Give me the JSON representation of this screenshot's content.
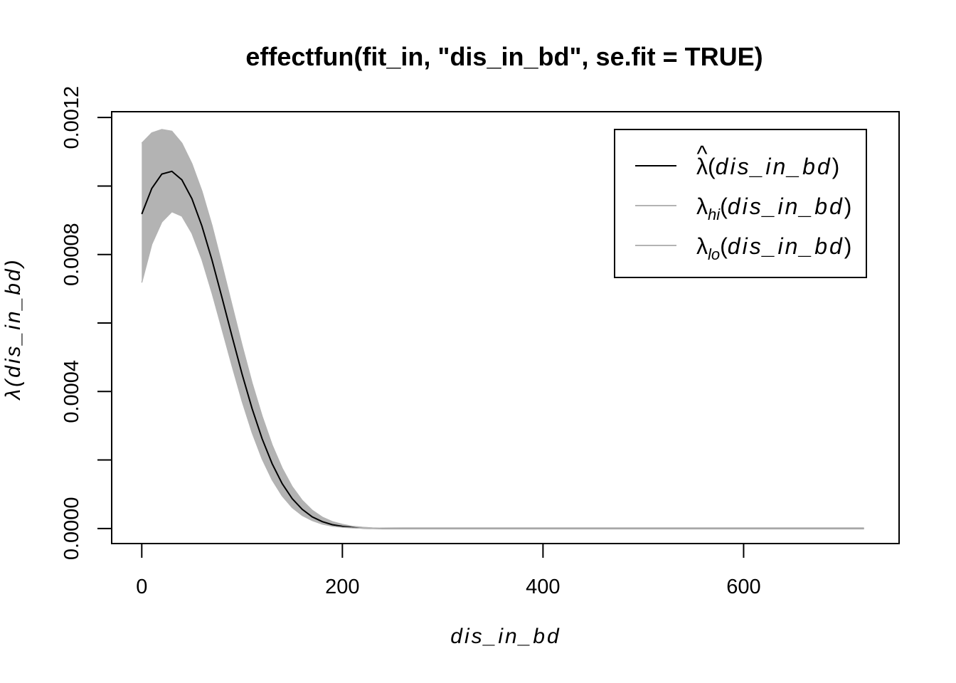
{
  "chart_data": {
    "type": "line",
    "title": "effectfun(fit_in, \"dis_in_bd\", se.fit = TRUE)",
    "xlabel": "dis_in_bd",
    "ylabel": "λ(dis_in_bd)",
    "xlim": [
      -30,
      755
    ],
    "ylim": [
      -4.4e-05,
      0.001217
    ],
    "x_ticks": [
      0,
      200,
      400,
      600
    ],
    "x_tick_labels": [
      "0",
      "200",
      "400",
      "600"
    ],
    "y_ticks": [
      0,
      0.0002,
      0.0004,
      0.0006,
      0.0008,
      0.001,
      0.0012
    ],
    "y_tick_labels": [
      "0.0000",
      "",
      "0.0004",
      "",
      "0.0008",
      "",
      "0.0012"
    ],
    "legend_position": "top-right",
    "legend": [
      {
        "symbol": "λ",
        "hat": "^",
        "subscript": "",
        "variable": "dis_in_bd",
        "color": "#000000"
      },
      {
        "symbol": "λ",
        "hat": "",
        "subscript": "hi",
        "variable": "dis_in_bd",
        "color": "#b3b3b3"
      },
      {
        "symbol": "λ",
        "hat": "",
        "subscript": "lo",
        "variable": "dis_in_bd",
        "color": "#b3b3b3"
      }
    ],
    "x": [
      0,
      10,
      20,
      30,
      40,
      50,
      60,
      70,
      80,
      90,
      100,
      110,
      120,
      130,
      140,
      150,
      160,
      170,
      180,
      190,
      200,
      210,
      220,
      230,
      240,
      250,
      260,
      280,
      300,
      400,
      500,
      600,
      720
    ],
    "series": [
      {
        "name": "λ̂(dis_in_bd)",
        "color": "#000000",
        "values": [
          0.000918,
          0.000993,
          0.001035,
          0.001043,
          0.001018,
          0.000963,
          0.000883,
          0.000784,
          0.000674,
          0.000561,
          0.000451,
          0.00035,
          0.000262,
          0.000189,
          0.000131,
          8.7e-05,
          5.6e-05,
          3.4e-05,
          2e-05,
          1.1e-05,
          6e-06,
          3e-06,
          1.5e-06,
          7e-07,
          3e-07,
          1e-07,
          5e-08,
          0,
          0,
          0,
          0,
          0,
          0
        ]
      },
      {
        "name": "λhi(dis_in_bd)",
        "color": "#b3b3b3",
        "values": [
          0.001125,
          0.001155,
          0.001165,
          0.00116,
          0.001125,
          0.001065,
          0.000985,
          0.000885,
          0.00077,
          0.000652,
          0.000535,
          0.000425,
          0.000328,
          0.000244,
          0.000176,
          0.000122,
          8.2e-05,
          5.3e-05,
          3.3e-05,
          2e-05,
          1.2e-05,
          6.5e-06,
          3.5e-06,
          1.8e-06,
          9e-07,
          4e-07,
          2e-07,
          0,
          0,
          0,
          0,
          0,
          0
        ]
      },
      {
        "name": "λlo(dis_in_bd)",
        "color": "#b3b3b3",
        "values": [
          0.000718,
          0.00083,
          0.000895,
          0.000925,
          0.000912,
          0.000862,
          0.000785,
          0.000688,
          0.000582,
          0.000475,
          0.000372,
          0.00028,
          0.000203,
          0.000142,
          9.5e-05,
          6.1e-05,
          3.8e-05,
          2.3e-05,
          1.3e-05,
          7e-06,
          3.6e-06,
          1.8e-06,
          9e-07,
          4e-07,
          2e-07,
          1e-07,
          4e-08,
          0,
          0,
          0,
          0,
          0,
          0
        ]
      }
    ]
  }
}
